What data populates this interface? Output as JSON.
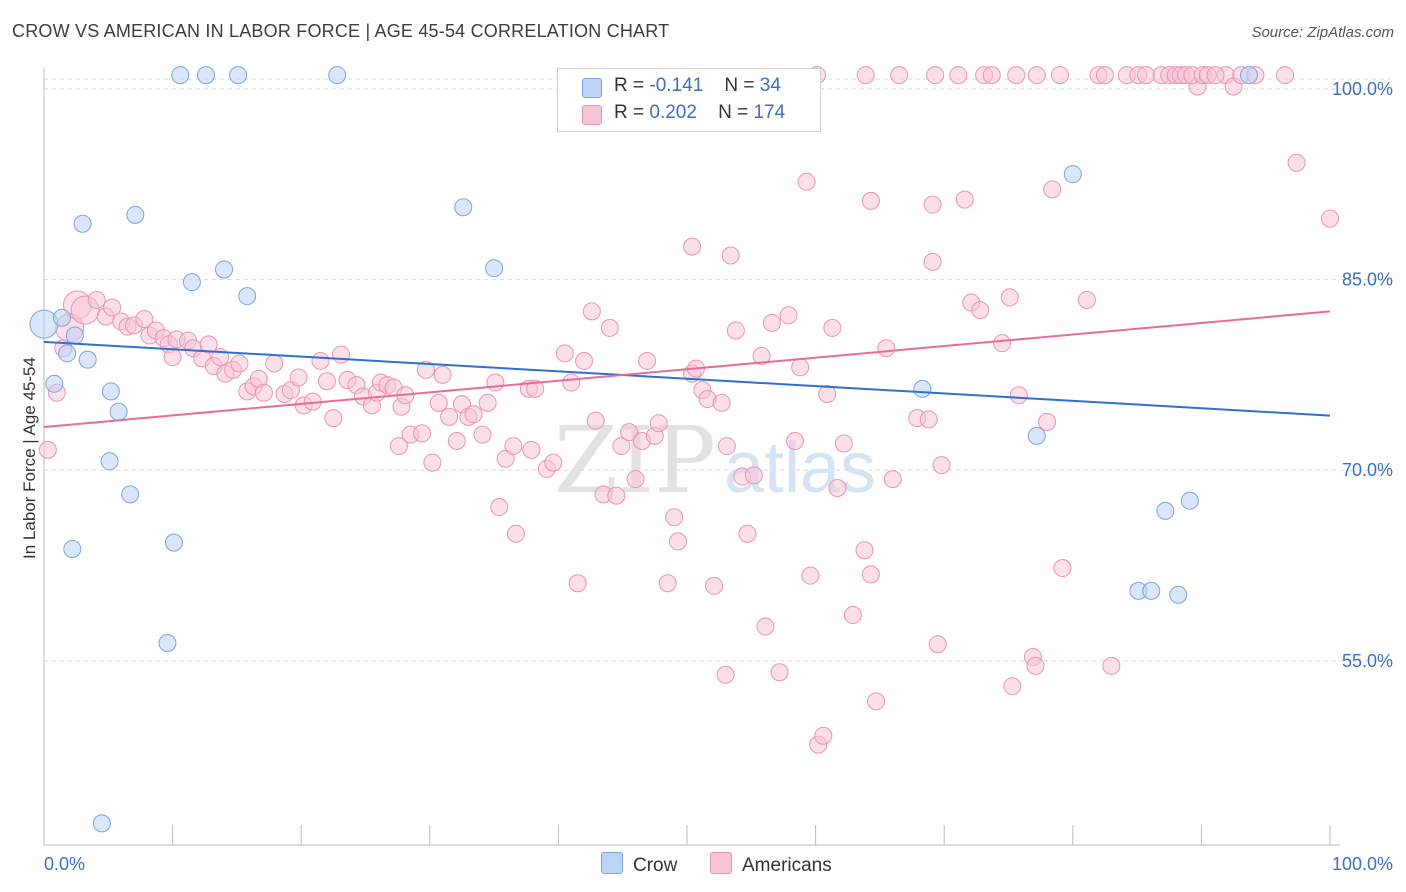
{
  "title": "CROW VS AMERICAN IN LABOR FORCE | AGE 45-54 CORRELATION CHART",
  "source": "Source: ZipAtlas.com",
  "watermark": {
    "zip": "ZIP",
    "atlas": "atlas"
  },
  "colors": {
    "crow_fill": "#bcd4f5",
    "crow_stroke": "#7aa5e0",
    "crow_line": "#2f6fcf",
    "american_fill": "#f8c5d7",
    "american_stroke": "#ec93b4",
    "american_line": "#e56d97",
    "tick_label": "#3a70c4",
    "grid": "#d9d9d9"
  },
  "legend": {
    "crow": {
      "r_label": "R =",
      "r_value": "-0.141",
      "n_label": "N =",
      "n_value": "34"
    },
    "american": {
      "r_label": "R =",
      "r_value": "0.202",
      "n_label": "N =",
      "n_value": "174"
    }
  },
  "chart_data": {
    "type": "scatter",
    "title": "CROW VS AMERICAN IN LABOR FORCE | AGE 45-54 CORRELATION CHART",
    "xlabel": "",
    "ylabel": "In Labor Force | Age 45-54",
    "xlim": [
      0,
      100
    ],
    "ylim": [
      40.5,
      101.5
    ],
    "x_tick_labels": [
      "0.0%",
      "100.0%"
    ],
    "y_ticks": [
      100,
      85,
      70,
      55
    ],
    "y_tick_labels": [
      "100.0%",
      "85.0%",
      "70.0%",
      "55.0%"
    ],
    "grid": true,
    "legend_position": "top-center",
    "series": [
      {
        "name": "Crow",
        "points": [
          [
            0.0,
            81.5
          ],
          [
            1.4,
            82.0
          ],
          [
            1.8,
            79.2
          ],
          [
            2.4,
            80.6
          ],
          [
            3.4,
            78.7
          ],
          [
            0.8,
            76.8
          ],
          [
            5.2,
            76.2
          ],
          [
            5.8,
            74.6
          ],
          [
            5.1,
            70.7
          ],
          [
            6.7,
            68.1
          ],
          [
            2.2,
            63.8
          ],
          [
            10.1,
            64.3
          ],
          [
            9.6,
            56.4
          ],
          [
            4.5,
            42.2
          ],
          [
            3.0,
            89.4
          ],
          [
            7.1,
            90.1
          ],
          [
            11.5,
            84.8
          ],
          [
            14.0,
            85.8
          ],
          [
            15.8,
            83.7
          ],
          [
            10.6,
            101.1
          ],
          [
            12.6,
            101.1
          ],
          [
            15.1,
            101.1
          ],
          [
            22.8,
            101.1
          ],
          [
            32.6,
            90.7
          ],
          [
            35.0,
            85.9
          ],
          [
            68.3,
            76.4
          ],
          [
            77.2,
            72.7
          ],
          [
            80.0,
            93.3
          ],
          [
            87.2,
            66.8
          ],
          [
            89.1,
            67.6
          ],
          [
            85.1,
            60.5
          ],
          [
            86.1,
            60.5
          ],
          [
            88.2,
            60.2
          ],
          [
            93.7,
            101.1
          ]
        ]
      },
      {
        "name": "Americans",
        "points": [
          [
            0.3,
            71.6
          ],
          [
            1.0,
            76.1
          ],
          [
            1.5,
            79.6
          ],
          [
            2.0,
            81.2
          ],
          [
            2.6,
            83.0
          ],
          [
            3.2,
            82.6
          ],
          [
            4.1,
            83.4
          ],
          [
            4.8,
            82.1
          ],
          [
            5.3,
            82.8
          ],
          [
            6.0,
            81.7
          ],
          [
            6.5,
            81.3
          ],
          [
            7.0,
            81.4
          ],
          [
            7.8,
            81.9
          ],
          [
            8.2,
            80.6
          ],
          [
            8.7,
            81.0
          ],
          [
            9.3,
            80.4
          ],
          [
            9.7,
            79.9
          ],
          [
            10.3,
            80.3
          ],
          [
            10.0,
            78.9
          ],
          [
            11.2,
            80.2
          ],
          [
            11.6,
            79.6
          ],
          [
            12.3,
            78.8
          ],
          [
            12.8,
            79.9
          ],
          [
            13.2,
            78.2
          ],
          [
            13.7,
            78.9
          ],
          [
            14.1,
            77.6
          ],
          [
            14.7,
            77.9
          ],
          [
            15.2,
            78.4
          ],
          [
            15.8,
            76.2
          ],
          [
            16.3,
            76.6
          ],
          [
            16.7,
            77.2
          ],
          [
            17.1,
            76.1
          ],
          [
            17.9,
            78.4
          ],
          [
            18.7,
            76.0
          ],
          [
            19.2,
            76.3
          ],
          [
            19.8,
            77.3
          ],
          [
            20.2,
            75.1
          ],
          [
            20.9,
            75.4
          ],
          [
            21.5,
            78.6
          ],
          [
            22.0,
            77.0
          ],
          [
            22.5,
            74.1
          ],
          [
            23.1,
            79.1
          ],
          [
            23.6,
            77.1
          ],
          [
            24.3,
            76.7
          ],
          [
            24.8,
            75.8
          ],
          [
            25.5,
            75.1
          ],
          [
            25.9,
            76.1
          ],
          [
            26.2,
            76.9
          ],
          [
            26.7,
            76.7
          ],
          [
            27.2,
            76.5
          ],
          [
            27.8,
            75.0
          ],
          [
            28.1,
            75.9
          ],
          [
            28.5,
            72.8
          ],
          [
            27.6,
            71.9
          ],
          [
            29.4,
            72.9
          ],
          [
            29.7,
            77.9
          ],
          [
            30.2,
            70.6
          ],
          [
            30.7,
            75.3
          ],
          [
            31.0,
            77.5
          ],
          [
            31.5,
            74.2
          ],
          [
            32.1,
            72.3
          ],
          [
            32.5,
            75.2
          ],
          [
            33.0,
            74.2
          ],
          [
            33.4,
            74.4
          ],
          [
            34.1,
            72.8
          ],
          [
            34.5,
            75.3
          ],
          [
            35.1,
            76.9
          ],
          [
            35.4,
            67.1
          ],
          [
            35.9,
            70.9
          ],
          [
            36.5,
            71.9
          ],
          [
            36.7,
            65.0
          ],
          [
            37.7,
            76.4
          ],
          [
            37.9,
            71.6
          ],
          [
            38.2,
            76.4
          ],
          [
            39.1,
            70.1
          ],
          [
            39.6,
            70.6
          ],
          [
            40.5,
            79.2
          ],
          [
            41.0,
            76.9
          ],
          [
            41.5,
            61.1
          ],
          [
            42.0,
            78.6
          ],
          [
            42.6,
            82.5
          ],
          [
            42.9,
            73.9
          ],
          [
            43.5,
            68.1
          ],
          [
            44.0,
            81.2
          ],
          [
            44.5,
            68.0
          ],
          [
            44.9,
            71.9
          ],
          [
            45.5,
            73.0
          ],
          [
            46.0,
            69.3
          ],
          [
            46.5,
            72.3
          ],
          [
            46.9,
            78.6
          ],
          [
            47.5,
            72.7
          ],
          [
            47.8,
            73.7
          ],
          [
            48.5,
            61.1
          ],
          [
            49.0,
            66.3
          ],
          [
            49.3,
            64.4
          ],
          [
            50.4,
            77.6
          ],
          [
            50.7,
            78.0
          ],
          [
            51.2,
            76.3
          ],
          [
            51.6,
            75.6
          ],
          [
            52.1,
            60.9
          ],
          [
            53.0,
            53.9
          ],
          [
            52.7,
            75.3
          ],
          [
            53.1,
            71.9
          ],
          [
            53.8,
            81.0
          ],
          [
            54.3,
            69.5
          ],
          [
            54.7,
            65.0
          ],
          [
            55.2,
            69.6
          ],
          [
            55.8,
            79.0
          ],
          [
            56.1,
            57.7
          ],
          [
            56.6,
            81.6
          ],
          [
            57.2,
            54.1
          ],
          [
            57.9,
            82.2
          ],
          [
            58.4,
            72.3
          ],
          [
            58.8,
            78.1
          ],
          [
            59.3,
            92.7
          ],
          [
            59.6,
            61.7
          ],
          [
            60.2,
            48.4
          ],
          [
            60.6,
            49.1
          ],
          [
            60.9,
            76.0
          ],
          [
            61.3,
            81.2
          ],
          [
            61.7,
            68.6
          ],
          [
            62.2,
            72.1
          ],
          [
            62.9,
            58.6
          ],
          [
            63.8,
            63.7
          ],
          [
            64.3,
            61.8
          ],
          [
            64.7,
            51.8
          ],
          [
            65.5,
            79.6
          ],
          [
            66.0,
            69.3
          ],
          [
            67.9,
            74.1
          ],
          [
            68.8,
            74.0
          ],
          [
            69.5,
            56.3
          ],
          [
            69.8,
            70.4
          ],
          [
            72.1,
            83.2
          ],
          [
            72.8,
            82.6
          ],
          [
            74.5,
            80.0
          ],
          [
            75.1,
            83.6
          ],
          [
            75.3,
            53.0
          ],
          [
            75.8,
            75.9
          ],
          [
            76.9,
            55.3
          ],
          [
            77.1,
            54.6
          ],
          [
            78.0,
            73.8
          ],
          [
            78.4,
            92.1
          ],
          [
            79.2,
            62.3
          ],
          [
            81.1,
            83.4
          ],
          [
            83.0,
            54.6
          ],
          [
            69.1,
            86.4
          ],
          [
            69.1,
            90.9
          ],
          [
            89.7,
            100.2
          ],
          [
            91.9,
            101.1
          ],
          [
            92.5,
            100.2
          ],
          [
            93.1,
            101.1
          ],
          [
            94.2,
            101.1
          ],
          [
            96.5,
            101.1
          ],
          [
            97.4,
            94.2
          ],
          [
            100.0,
            89.8
          ],
          [
            60.1,
            101.1
          ],
          [
            63.9,
            101.1
          ],
          [
            66.5,
            101.1
          ],
          [
            69.3,
            101.1
          ],
          [
            71.1,
            101.1
          ],
          [
            73.1,
            101.1
          ],
          [
            73.7,
            101.1
          ],
          [
            75.6,
            101.1
          ],
          [
            77.2,
            101.1
          ],
          [
            79.0,
            101.1
          ],
          [
            82.0,
            101.1
          ],
          [
            82.5,
            101.1
          ],
          [
            84.2,
            101.1
          ],
          [
            85.1,
            101.1
          ],
          [
            85.7,
            101.1
          ],
          [
            86.9,
            101.1
          ],
          [
            87.5,
            101.1
          ],
          [
            88.0,
            101.1
          ],
          [
            88.4,
            101.1
          ],
          [
            88.8,
            101.1
          ],
          [
            89.3,
            101.1
          ],
          [
            90.1,
            101.1
          ],
          [
            90.5,
            101.1
          ],
          [
            91.1,
            101.1
          ],
          [
            53.4,
            86.9
          ],
          [
            71.6,
            91.3
          ],
          [
            50.4,
            87.6
          ],
          [
            64.3,
            91.2
          ]
        ]
      }
    ],
    "trend_lines": [
      {
        "name": "Crow",
        "x": [
          0,
          100
        ],
        "y": [
          80.1,
          74.3
        ]
      },
      {
        "name": "Americans",
        "x": [
          0,
          100
        ],
        "y": [
          73.4,
          82.5
        ]
      }
    ]
  },
  "bottom_legend": {
    "crow": "Crow",
    "american": "Americans"
  }
}
